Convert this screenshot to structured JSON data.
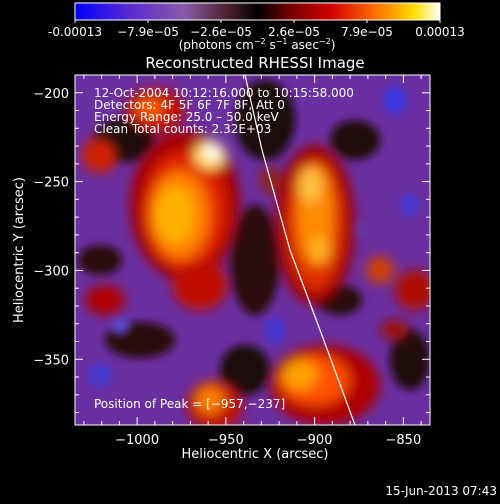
{
  "colorbar": {
    "ticks": [
      "-0.00013",
      "−7.9e−05",
      "−2.6e−05",
      "2.6e−05",
      "7.9e−05",
      "0.00013"
    ],
    "unit_main": "(photons cm",
    "unit_sup1": "−2",
    "unit_mid": " s",
    "unit_sup2": "−1",
    "unit_end": " asec",
    "unit_sup3": "−2",
    "unit_close": ")",
    "stops": [
      "#0000ff",
      "#5a2bd0",
      "#8a5aa8",
      "#4b1f2b",
      "#000000",
      "#6b0000",
      "#d10000",
      "#ff6a00",
      "#ffe000",
      "#ffffff"
    ]
  },
  "plot": {
    "title": "Reconstructed RHESSI Image",
    "info_lines": [
      "12‑Oct‑2004 10:12:16.000 to 10:15:58.000",
      "Detectors: 4F 5F 6F 7F 8F, Att 0",
      "Energy Range: 25.0 – 50.0 keV",
      "Clean    Total counts: 2.32E+03"
    ],
    "peak_label": "Position of Peak = [−957,−237]",
    "xlabel": "Heliocentric X (arcsec)",
    "ylabel": "Heliocentric Y (arcsec)",
    "xticks": [
      "−1000",
      "−950",
      "−900",
      "−850"
    ],
    "yticks": [
      "−200",
      "−250",
      "−300",
      "−350"
    ]
  },
  "footer": {
    "timestamp": "15‑Jun‑2013 07:43"
  }
}
